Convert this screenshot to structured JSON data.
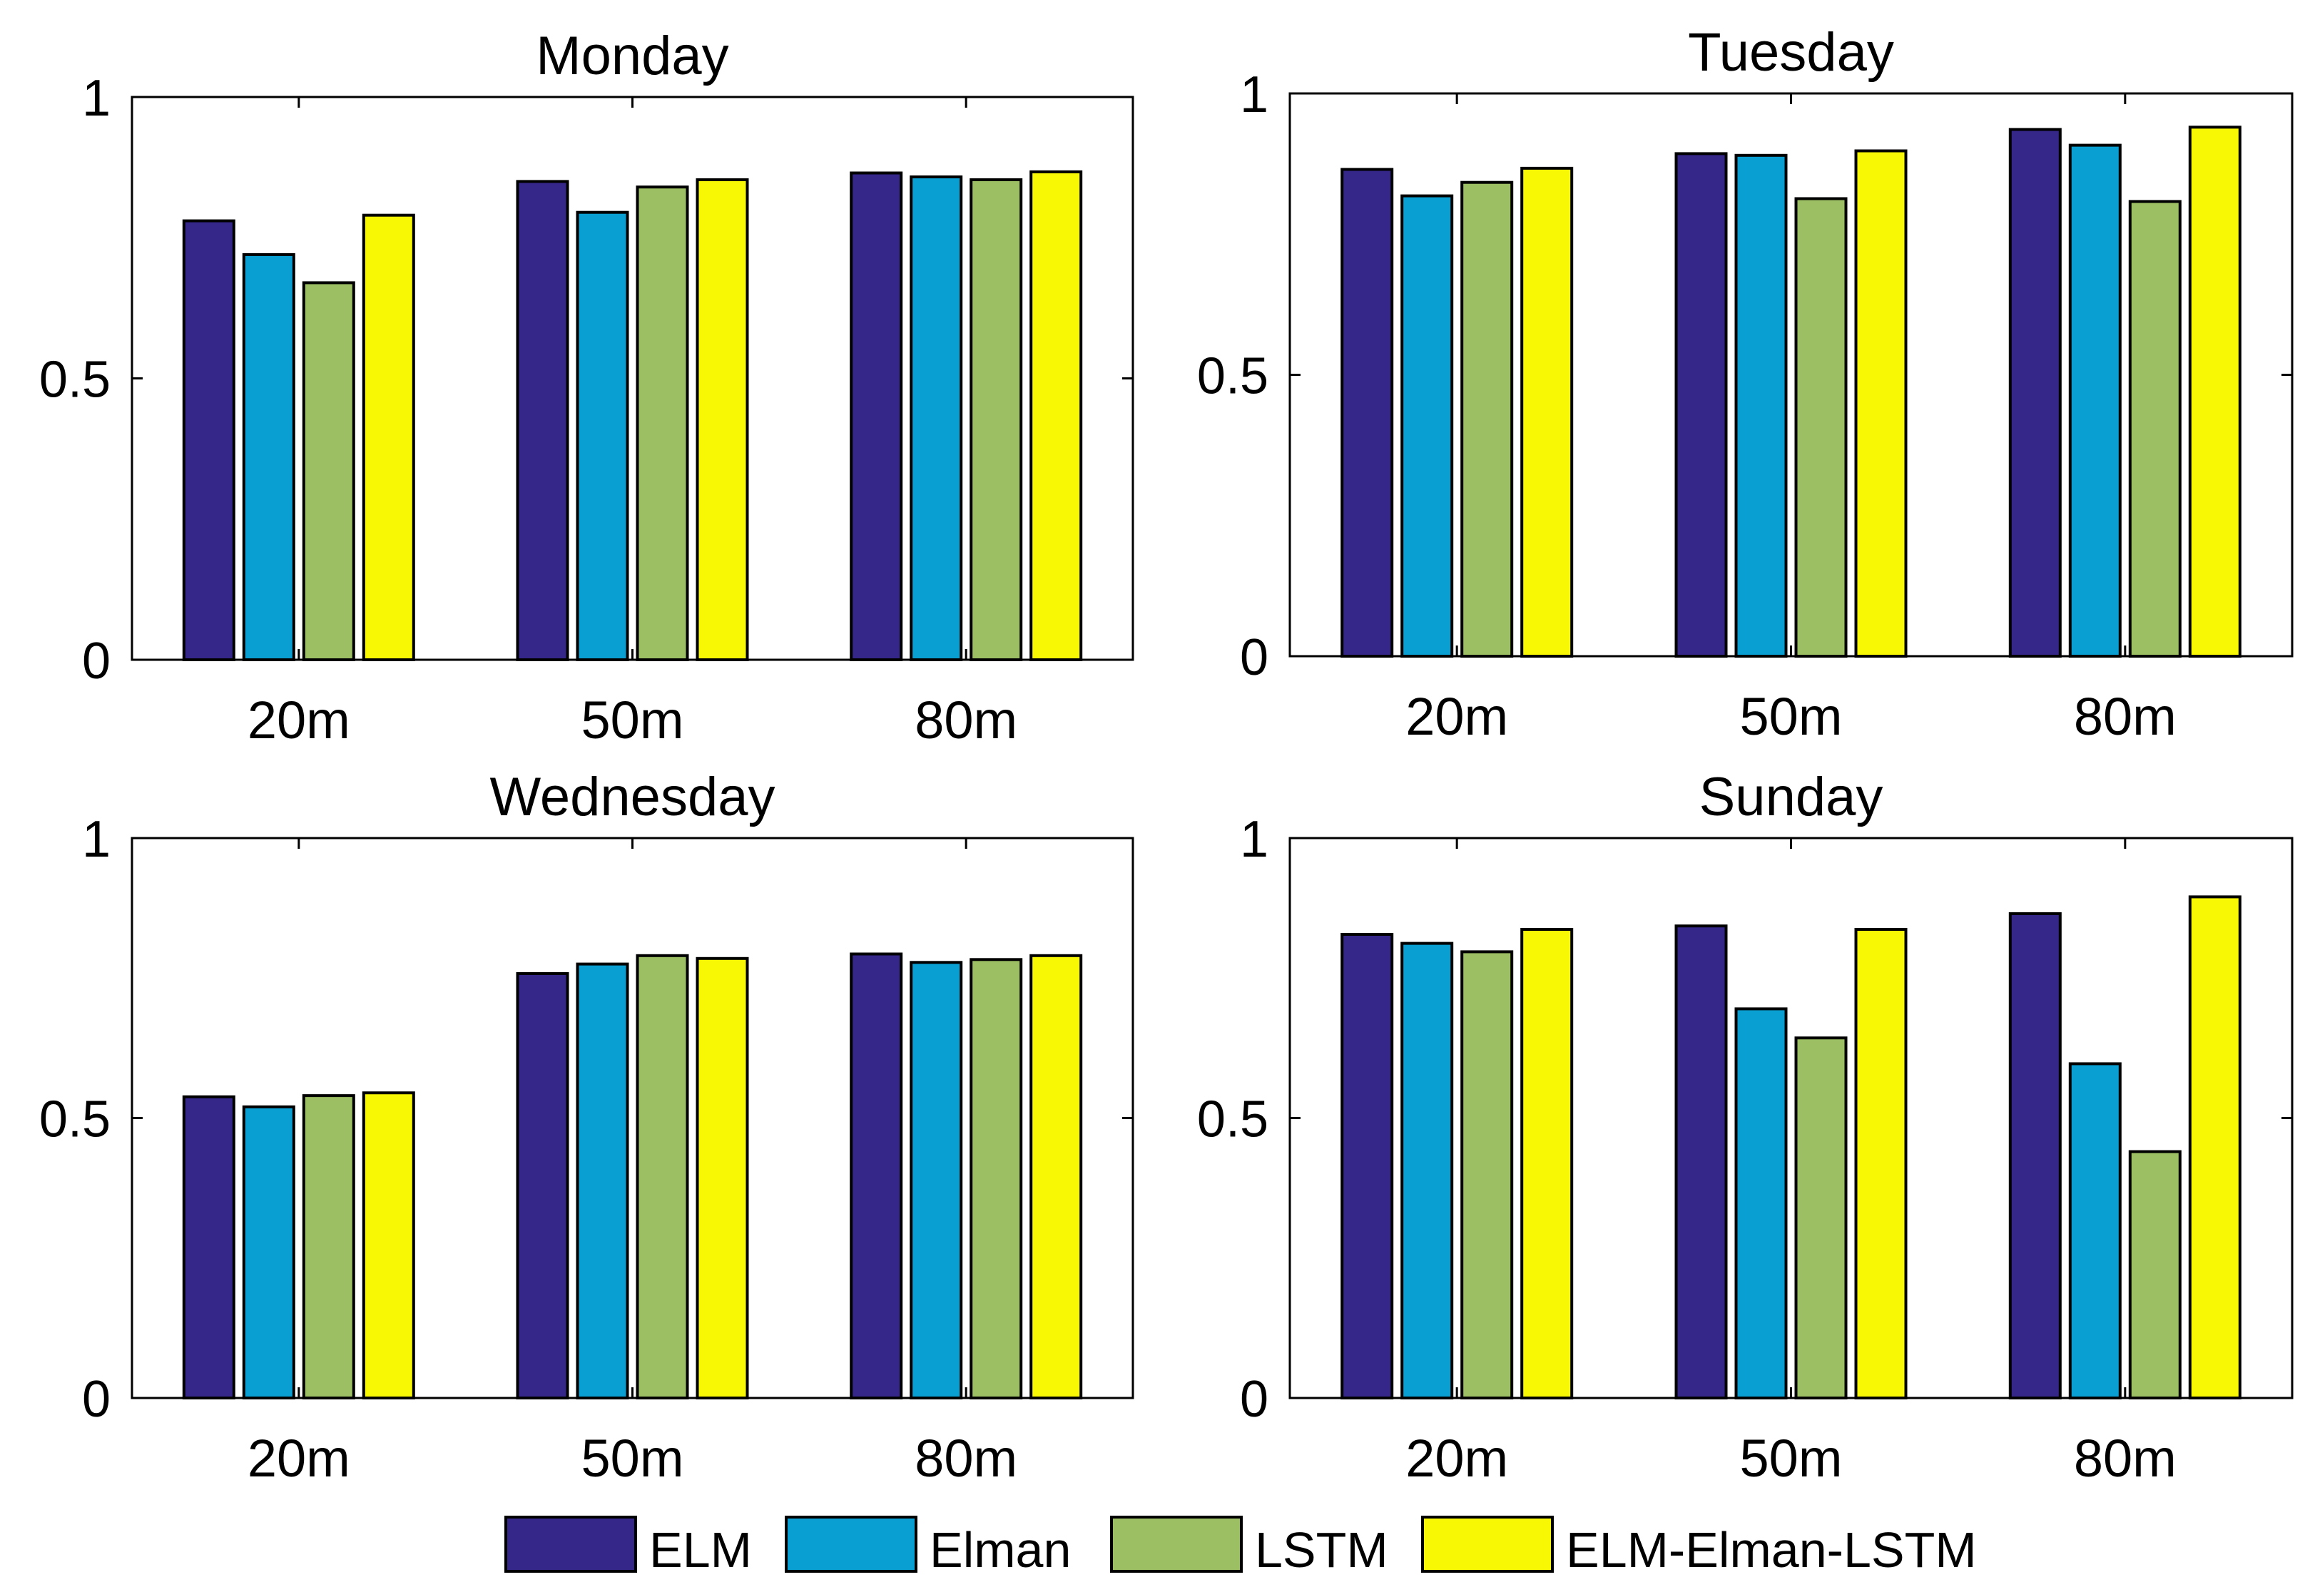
{
  "chart_data": [
    {
      "type": "bar",
      "title": "Monday",
      "categories": [
        "20m",
        "50m",
        "80m"
      ],
      "series": [
        {
          "name": "ELM",
          "values": [
            0.78,
            0.85,
            0.865
          ]
        },
        {
          "name": "Elman",
          "values": [
            0.72,
            0.795,
            0.858
          ]
        },
        {
          "name": "LSTM",
          "values": [
            0.67,
            0.84,
            0.853
          ]
        },
        {
          "name": "ELM-Elman-LSTM",
          "values": [
            0.79,
            0.853,
            0.867
          ]
        }
      ],
      "ylim": [
        0,
        1
      ],
      "yticks": [
        "0",
        "0.5",
        "1"
      ],
      "xlabel": "",
      "ylabel": ""
    },
    {
      "type": "bar",
      "title": "Tuesday",
      "categories": [
        "20m",
        "50m",
        "80m"
      ],
      "series": [
        {
          "name": "ELM",
          "values": [
            0.865,
            0.893,
            0.936
          ]
        },
        {
          "name": "Elman",
          "values": [
            0.818,
            0.89,
            0.908
          ]
        },
        {
          "name": "LSTM",
          "values": [
            0.842,
            0.813,
            0.808
          ]
        },
        {
          "name": "ELM-Elman-LSTM",
          "values": [
            0.867,
            0.898,
            0.94
          ]
        }
      ],
      "ylim": [
        0,
        1
      ],
      "yticks": [
        "0",
        "0.5",
        "1"
      ],
      "xlabel": "",
      "ylabel": ""
    },
    {
      "type": "bar",
      "title": "Wednesday",
      "categories": [
        "20m",
        "50m",
        "80m"
      ],
      "series": [
        {
          "name": "ELM",
          "values": [
            0.538,
            0.758,
            0.793
          ]
        },
        {
          "name": "Elman",
          "values": [
            0.52,
            0.775,
            0.778
          ]
        },
        {
          "name": "LSTM",
          "values": [
            0.54,
            0.79,
            0.783
          ]
        },
        {
          "name": "ELM-Elman-LSTM",
          "values": [
            0.545,
            0.785,
            0.79
          ]
        }
      ],
      "ylim": [
        0,
        1
      ],
      "yticks": [
        "0",
        "0.5",
        "1"
      ],
      "xlabel": "",
      "ylabel": ""
    },
    {
      "type": "bar",
      "title": "Sunday",
      "categories": [
        "20m",
        "50m",
        "80m"
      ],
      "series": [
        {
          "name": "ELM",
          "values": [
            0.828,
            0.843,
            0.865
          ]
        },
        {
          "name": "Elman",
          "values": [
            0.812,
            0.695,
            0.597
          ]
        },
        {
          "name": "LSTM",
          "values": [
            0.797,
            0.643,
            0.44
          ]
        },
        {
          "name": "ELM-Elman-LSTM",
          "values": [
            0.837,
            0.837,
            0.895
          ]
        }
      ],
      "ylim": [
        0,
        1
      ],
      "yticks": [
        "0",
        "0.5",
        "1"
      ],
      "xlabel": "",
      "ylabel": ""
    }
  ],
  "legend": {
    "position": "bottom-center",
    "items": [
      {
        "label": "ELM",
        "color": "#35268A"
      },
      {
        "label": "Elman",
        "color": "#0A9FD3"
      },
      {
        "label": "LSTM",
        "color": "#9BBF62"
      },
      {
        "label": "ELM-Elman-LSTM",
        "color": "#F8F804"
      }
    ]
  }
}
